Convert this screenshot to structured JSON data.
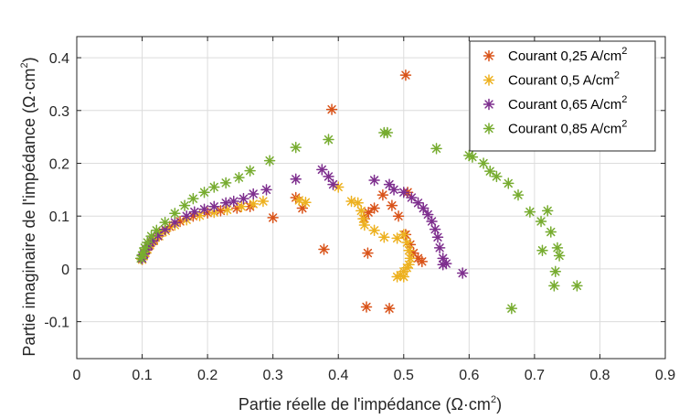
{
  "chart_data": {
    "type": "scatter",
    "xlabel": "Partie  réelle de l'impédance (Ω·cm",
    "xlabel_exp": "2",
    "xlabel_close": ")",
    "ylabel": "Partie  imaginaire de l'impédance (Ω·cm",
    "ylabel_exp": "2",
    "ylabel_close": ")",
    "xlim": [
      0,
      0.9
    ],
    "ylim": [
      -0.17,
      0.44
    ],
    "xticks": [
      0,
      0.1,
      0.2,
      0.3,
      0.4,
      0.5,
      0.6,
      0.7,
      0.8,
      0.9
    ],
    "xtick_labels": [
      "0",
      "0.1",
      "0.2",
      "0.3",
      "0.4",
      "0.5",
      "0.6",
      "0.7",
      "0.8",
      "0.9"
    ],
    "yticks": [
      -0.1,
      0,
      0.1,
      0.2,
      0.3,
      0.4
    ],
    "ytick_labels": [
      "-0.1",
      "0",
      "0.1",
      "0.2",
      "0.3",
      "0.4"
    ],
    "grid": true,
    "legend_position": "top-right",
    "marker": "asterisk",
    "series": [
      {
        "name": "Courant 0,25 A/cm",
        "name_exp": "2",
        "color": "#D95319",
        "points": [
          [
            0.1,
            0.018
          ],
          [
            0.102,
            0.025
          ],
          [
            0.104,
            0.03
          ],
          [
            0.106,
            0.036
          ],
          [
            0.109,
            0.042
          ],
          [
            0.113,
            0.049
          ],
          [
            0.118,
            0.055
          ],
          [
            0.124,
            0.062
          ],
          [
            0.131,
            0.07
          ],
          [
            0.142,
            0.08
          ],
          [
            0.158,
            0.09
          ],
          [
            0.178,
            0.1
          ],
          [
            0.2,
            0.106
          ],
          [
            0.22,
            0.11
          ],
          [
            0.245,
            0.115
          ],
          [
            0.265,
            0.118
          ],
          [
            0.3,
            0.097
          ],
          [
            0.335,
            0.135
          ],
          [
            0.345,
            0.115
          ],
          [
            0.39,
            0.302
          ],
          [
            0.378,
            0.037
          ],
          [
            0.44,
            0.095
          ],
          [
            0.446,
            0.107
          ],
          [
            0.455,
            0.115
          ],
          [
            0.445,
            0.03
          ],
          [
            0.443,
            -0.072
          ],
          [
            0.478,
            -0.075
          ],
          [
            0.468,
            0.14
          ],
          [
            0.482,
            0.12
          ],
          [
            0.492,
            0.1
          ],
          [
            0.503,
            0.367
          ],
          [
            0.506,
            0.145
          ],
          [
            0.503,
            0.065
          ],
          [
            0.51,
            0.046
          ],
          [
            0.515,
            0.03
          ],
          [
            0.522,
            0.02
          ],
          [
            0.528,
            0.014
          ]
        ]
      },
      {
        "name": "Courant 0,5 A/cm",
        "name_exp": "2",
        "color": "#EDB120",
        "points": [
          [
            0.1,
            0.018
          ],
          [
            0.102,
            0.024
          ],
          [
            0.105,
            0.03
          ],
          [
            0.108,
            0.037
          ],
          [
            0.112,
            0.045
          ],
          [
            0.118,
            0.053
          ],
          [
            0.126,
            0.062
          ],
          [
            0.136,
            0.072
          ],
          [
            0.15,
            0.083
          ],
          [
            0.168,
            0.093
          ],
          [
            0.188,
            0.101
          ],
          [
            0.21,
            0.107
          ],
          [
            0.23,
            0.112
          ],
          [
            0.252,
            0.118
          ],
          [
            0.27,
            0.123
          ],
          [
            0.285,
            0.128
          ],
          [
            0.34,
            0.13
          ],
          [
            0.35,
            0.126
          ],
          [
            0.4,
            0.155
          ],
          [
            0.42,
            0.128
          ],
          [
            0.43,
            0.125
          ],
          [
            0.435,
            0.11
          ],
          [
            0.438,
            0.095
          ],
          [
            0.44,
            0.083
          ],
          [
            0.455,
            0.073
          ],
          [
            0.47,
            0.06
          ],
          [
            0.49,
            0.058
          ],
          [
            0.5,
            0.065
          ],
          [
            0.505,
            0.05
          ],
          [
            0.508,
            0.035
          ],
          [
            0.51,
            0.02
          ],
          [
            0.508,
            0.008
          ],
          [
            0.505,
            0.002
          ],
          [
            0.5,
            -0.005
          ],
          [
            0.495,
            -0.012
          ],
          [
            0.49,
            -0.015
          ],
          [
            0.5,
            -0.015
          ]
        ]
      },
      {
        "name": "Courant 0,65 A/cm",
        "name_exp": "2",
        "color": "#7E2F8E",
        "points": [
          [
            0.1,
            0.02
          ],
          [
            0.103,
            0.028
          ],
          [
            0.106,
            0.036
          ],
          [
            0.11,
            0.044
          ],
          [
            0.116,
            0.053
          ],
          [
            0.124,
            0.063
          ],
          [
            0.135,
            0.075
          ],
          [
            0.15,
            0.088
          ],
          [
            0.168,
            0.1
          ],
          [
            0.18,
            0.108
          ],
          [
            0.195,
            0.113
          ],
          [
            0.21,
            0.118
          ],
          [
            0.228,
            0.125
          ],
          [
            0.24,
            0.128
          ],
          [
            0.255,
            0.133
          ],
          [
            0.27,
            0.142
          ],
          [
            0.29,
            0.15
          ],
          [
            0.335,
            0.17
          ],
          [
            0.375,
            0.188
          ],
          [
            0.385,
            0.175
          ],
          [
            0.392,
            0.16
          ],
          [
            0.455,
            0.168
          ],
          [
            0.478,
            0.16
          ],
          [
            0.485,
            0.15
          ],
          [
            0.5,
            0.145
          ],
          [
            0.512,
            0.135
          ],
          [
            0.522,
            0.125
          ],
          [
            0.53,
            0.115
          ],
          [
            0.537,
            0.103
          ],
          [
            0.543,
            0.09
          ],
          [
            0.548,
            0.075
          ],
          [
            0.552,
            0.06
          ],
          [
            0.555,
            0.04
          ],
          [
            0.56,
            0.02
          ],
          [
            0.565,
            0.01
          ],
          [
            0.56,
            0.008
          ],
          [
            0.59,
            -0.008
          ]
        ]
      },
      {
        "name": "Courant 0,85 A/cm",
        "name_exp": "2",
        "color": "#77AC30",
        "points": [
          [
            0.098,
            0.02
          ],
          [
            0.1,
            0.025
          ],
          [
            0.102,
            0.032
          ],
          [
            0.104,
            0.04
          ],
          [
            0.108,
            0.05
          ],
          [
            0.114,
            0.062
          ],
          [
            0.122,
            0.073
          ],
          [
            0.135,
            0.088
          ],
          [
            0.15,
            0.105
          ],
          [
            0.165,
            0.12
          ],
          [
            0.178,
            0.133
          ],
          [
            0.195,
            0.145
          ],
          [
            0.21,
            0.155
          ],
          [
            0.228,
            0.163
          ],
          [
            0.248,
            0.173
          ],
          [
            0.265,
            0.186
          ],
          [
            0.295,
            0.205
          ],
          [
            0.335,
            0.23
          ],
          [
            0.385,
            0.245
          ],
          [
            0.47,
            0.258
          ],
          [
            0.475,
            0.258
          ],
          [
            0.55,
            0.228
          ],
          [
            0.6,
            0.215
          ],
          [
            0.605,
            0.212
          ],
          [
            0.615,
            0.235
          ],
          [
            0.622,
            0.2
          ],
          [
            0.632,
            0.185
          ],
          [
            0.642,
            0.175
          ],
          [
            0.66,
            0.162
          ],
          [
            0.675,
            0.14
          ],
          [
            0.693,
            0.108
          ],
          [
            0.71,
            0.09
          ],
          [
            0.72,
            0.11
          ],
          [
            0.725,
            0.07
          ],
          [
            0.712,
            0.035
          ],
          [
            0.735,
            0.04
          ],
          [
            0.738,
            0.025
          ],
          [
            0.732,
            -0.005
          ],
          [
            0.73,
            -0.032
          ],
          [
            0.765,
            -0.032
          ],
          [
            0.665,
            -0.075
          ]
        ]
      }
    ]
  }
}
